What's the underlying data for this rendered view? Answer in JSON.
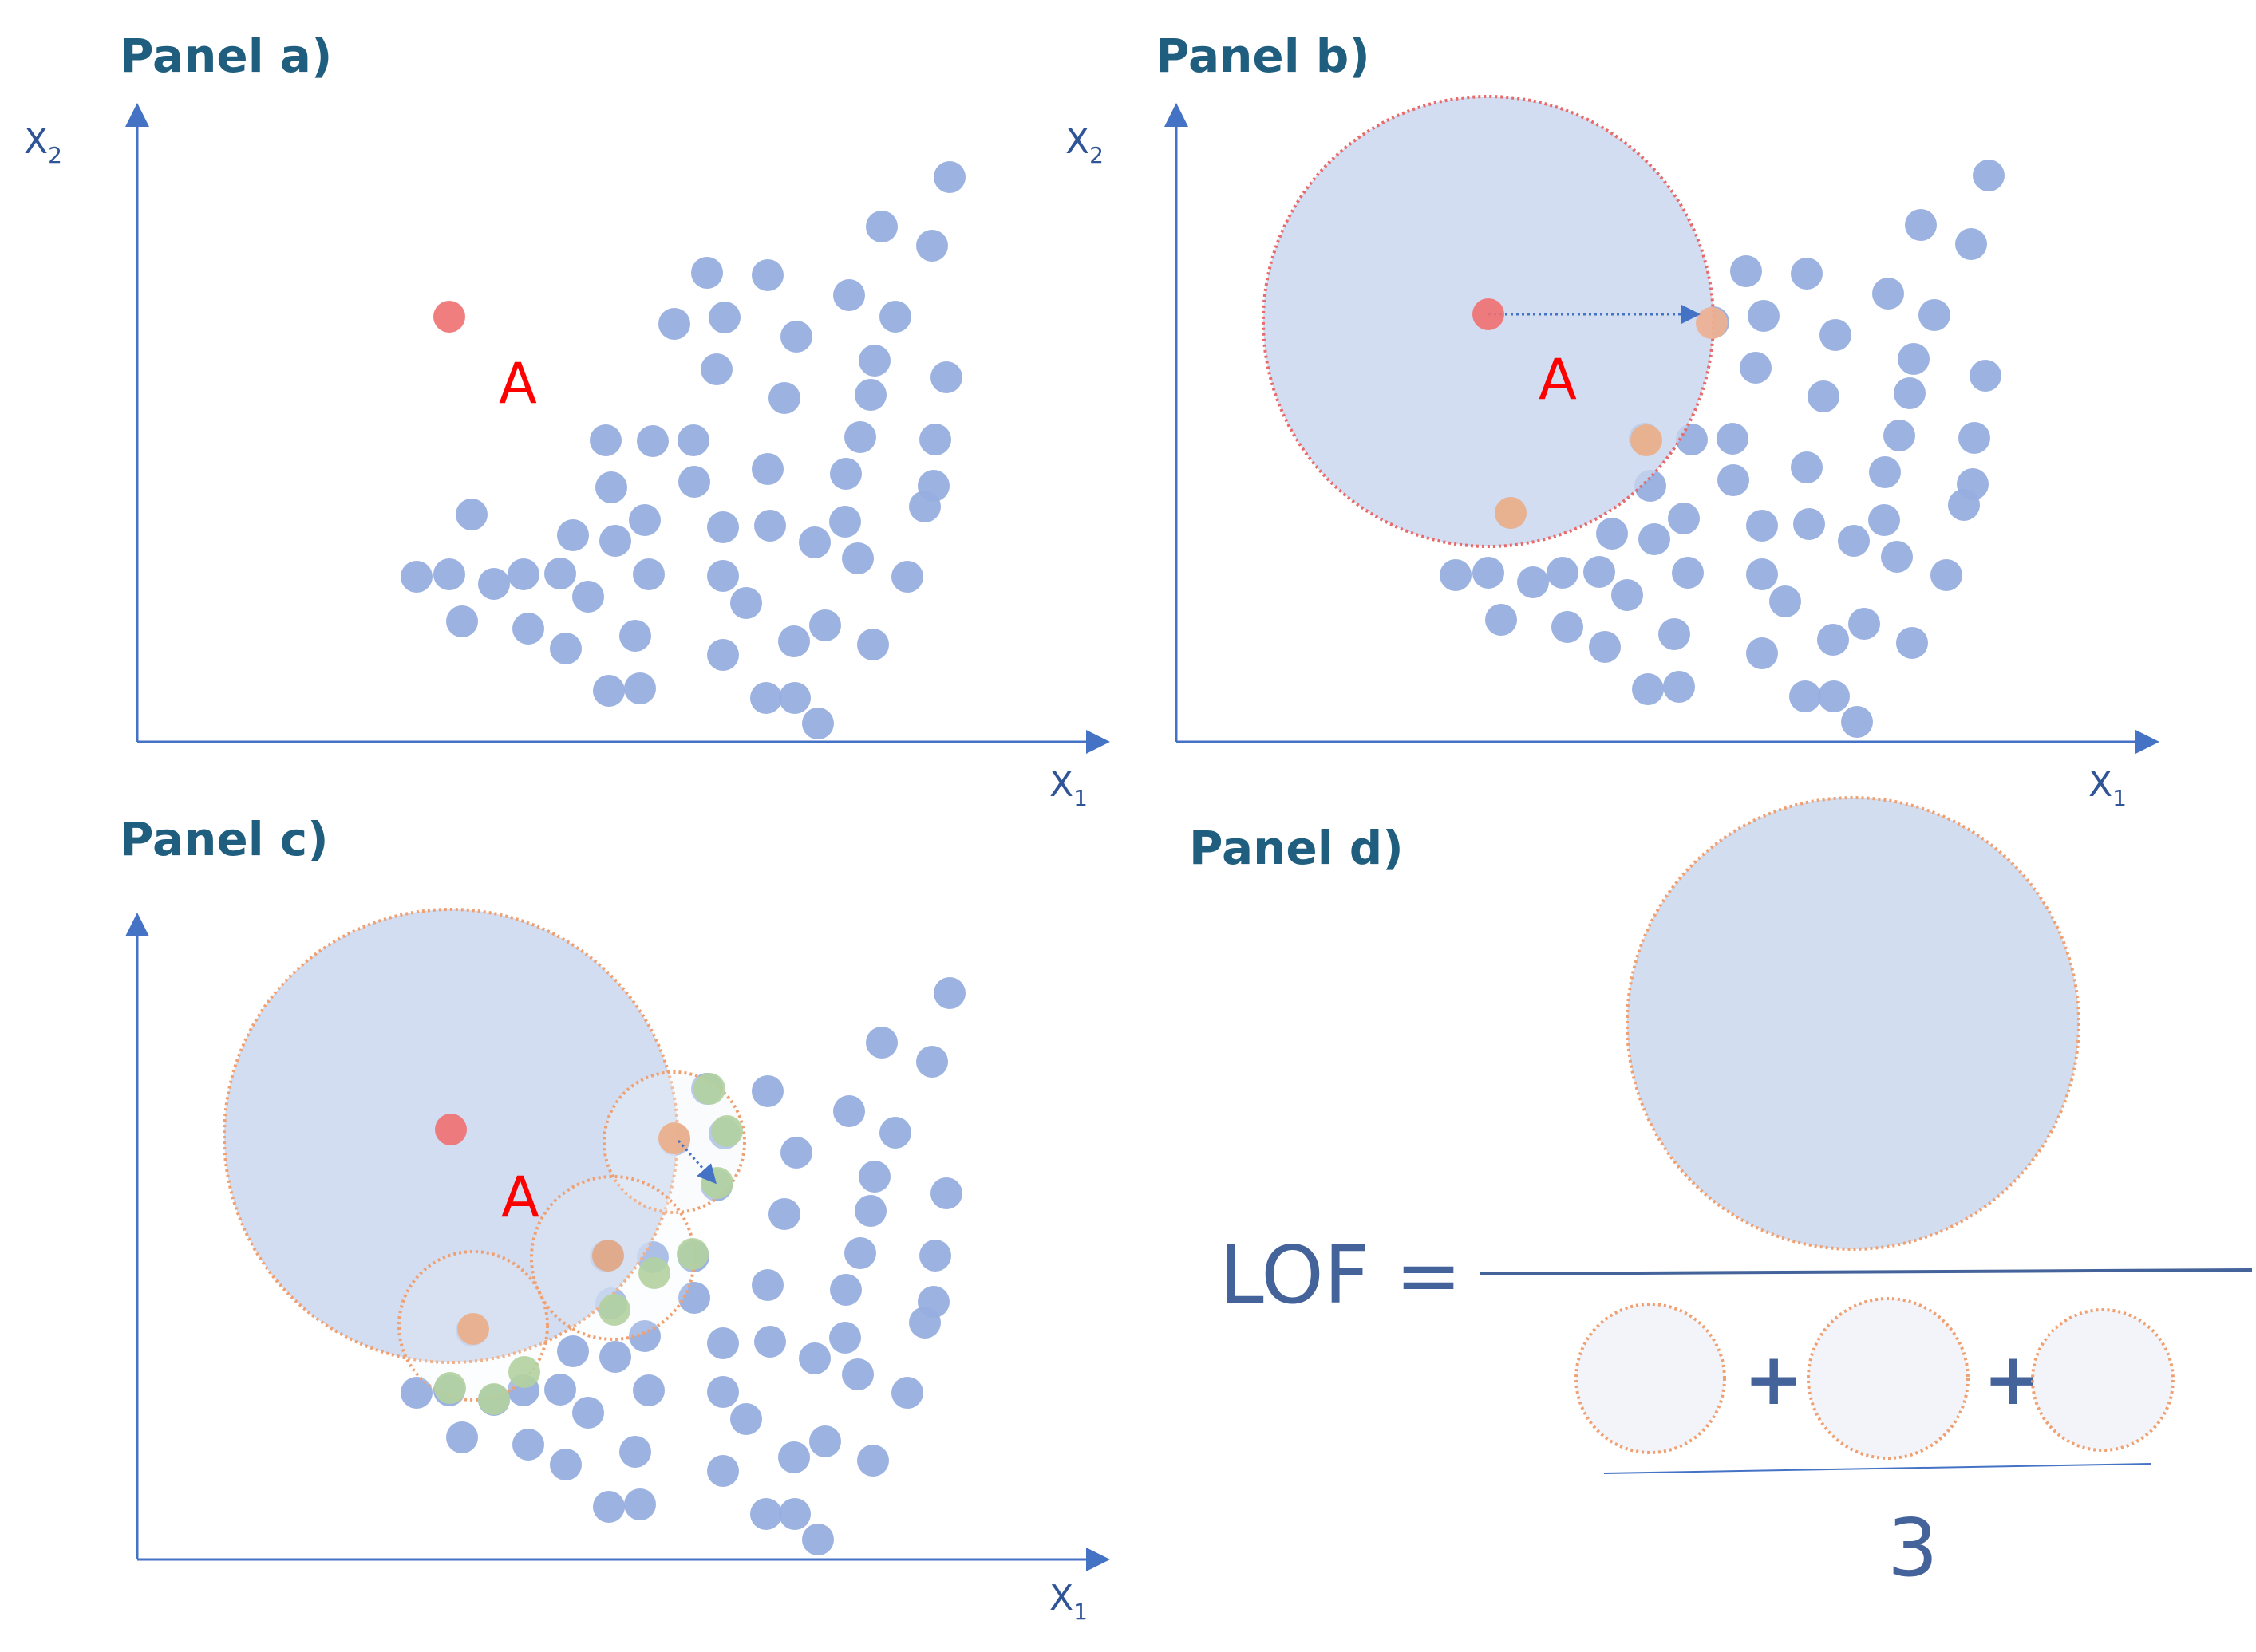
{
  "figure": {
    "panels": [
      {
        "id": "a",
        "title": "Panel a)",
        "x_label": "X",
        "x_label_sub": "1",
        "y_label": "X",
        "y_label_sub": "2",
        "point_label": "A"
      },
      {
        "id": "b",
        "title": "Panel b)",
        "x_label": "X",
        "x_label_sub": "1",
        "y_label": "X",
        "y_label_sub": "2",
        "point_label": "A"
      },
      {
        "id": "c",
        "title": "Panel c)",
        "x_label": "X",
        "x_label_sub": "1",
        "point_label": "A"
      },
      {
        "id": "d",
        "title": "Panel d)"
      }
    ],
    "formula": {
      "lhs": "LOF =",
      "plus_1": "+",
      "plus_2": "+",
      "denominator": "3"
    }
  },
  "colors": {
    "point": "#97aedf",
    "outlier": "#f07070",
    "neighbor": "#f0b090",
    "second_neighbor": "#b3d1a0",
    "axis": "#4472c4",
    "circle_fill": "#d3ddf0",
    "circle_border": "#e77a7a",
    "small_circle_border": "#f0a070",
    "title": "#1f5e7e",
    "formula": "#44639a"
  }
}
